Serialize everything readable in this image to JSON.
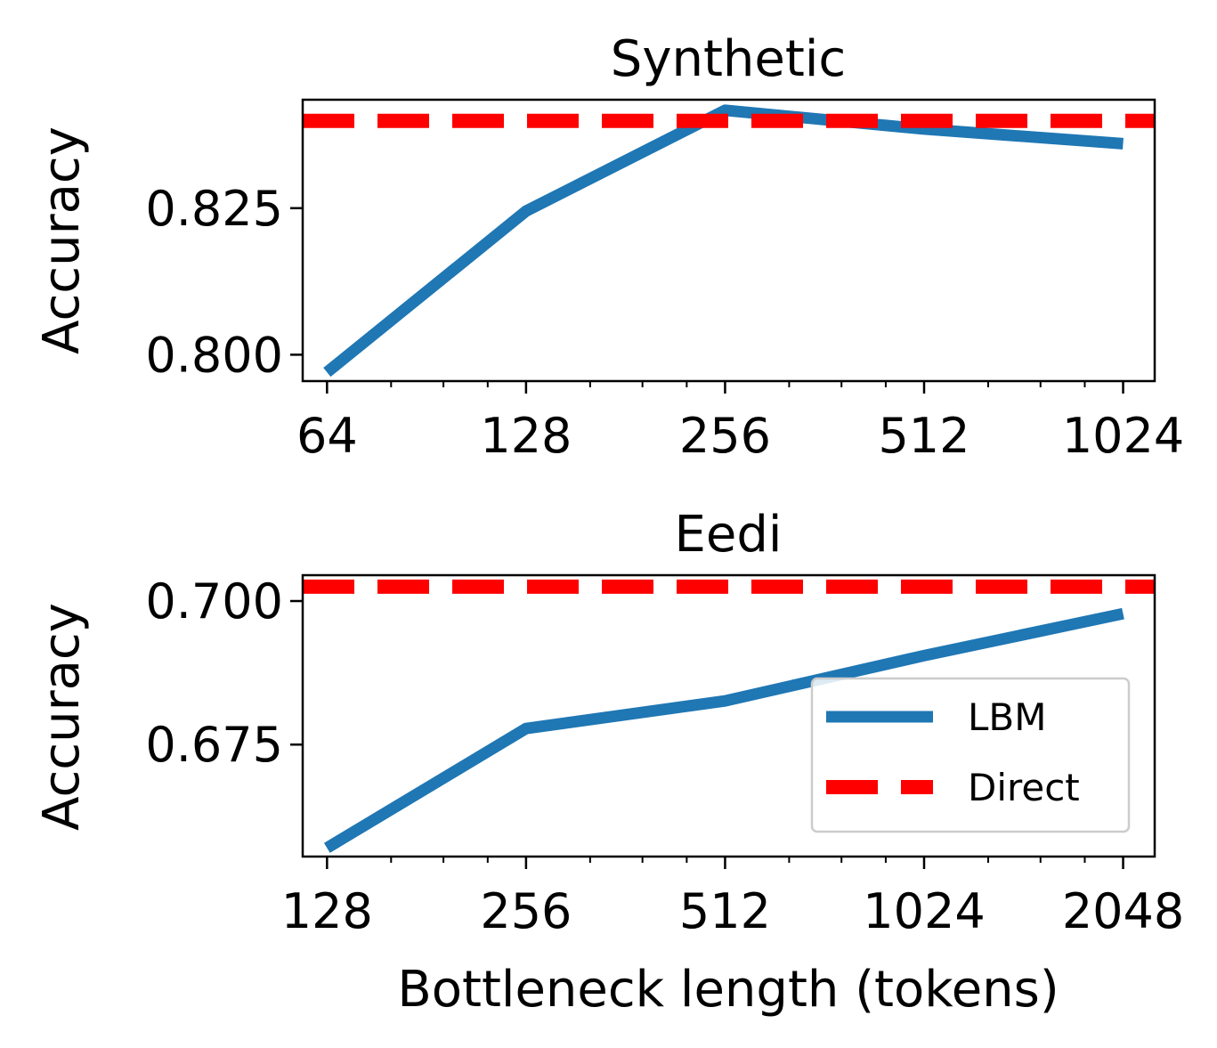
{
  "chart_data": [
    {
      "type": "line",
      "title": "Synthetic",
      "xlabel": "",
      "ylabel": "Accuracy",
      "x_scale": "log2",
      "x": [
        64,
        128,
        256,
        512,
        1024
      ],
      "xticklabels": [
        "64",
        "128",
        "256",
        "512",
        "1024"
      ],
      "xlim": [
        58.8,
        1143
      ],
      "ylim": [
        0.7955,
        0.8435
      ],
      "yticks": [
        0.8,
        0.825
      ],
      "yticklabels": [
        "0.800",
        "0.825"
      ],
      "grid": false,
      "series": [
        {
          "name": "LBM",
          "style": "solid",
          "color": "#1f77b4",
          "values": [
            0.797,
            0.8245,
            0.8417,
            0.8385,
            0.836
          ]
        },
        {
          "name": "Direct",
          "style": "dashed",
          "color": "#ff0000",
          "constant": 0.8399
        }
      ]
    },
    {
      "type": "line",
      "title": "Eedi",
      "xlabel": "Bottleneck length (tokens)",
      "ylabel": "Accuracy",
      "x_scale": "log2",
      "x": [
        128,
        256,
        512,
        1024,
        2048
      ],
      "xticklabels": [
        "128",
        "256",
        "512",
        "1024",
        "2048"
      ],
      "xlim": [
        117.6,
        2286
      ],
      "ylim": [
        0.6555,
        0.7045
      ],
      "yticks": [
        0.675,
        0.7
      ],
      "yticklabels": [
        "0.675",
        "0.700"
      ],
      "grid": false,
      "legend": {
        "position": "lower right",
        "entries": [
          "LBM",
          "Direct"
        ]
      },
      "series": [
        {
          "name": "LBM",
          "style": "solid",
          "color": "#1f77b4",
          "values": [
            0.657,
            0.6778,
            0.6826,
            0.6905,
            0.6978
          ]
        },
        {
          "name": "Direct",
          "style": "dashed",
          "color": "#ff0000",
          "constant": 0.7025
        }
      ]
    }
  ]
}
